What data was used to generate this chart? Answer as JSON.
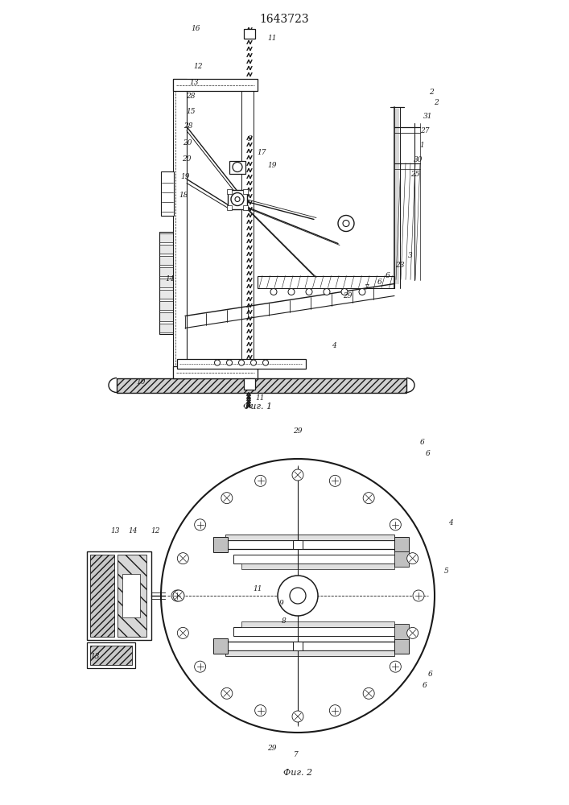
{
  "bg_color": "#ffffff",
  "line_color": "#1a1a1a",
  "title_text": "1643723",
  "fig1_caption": "Фиг. 1",
  "fig2_caption": "Фиг. 2"
}
